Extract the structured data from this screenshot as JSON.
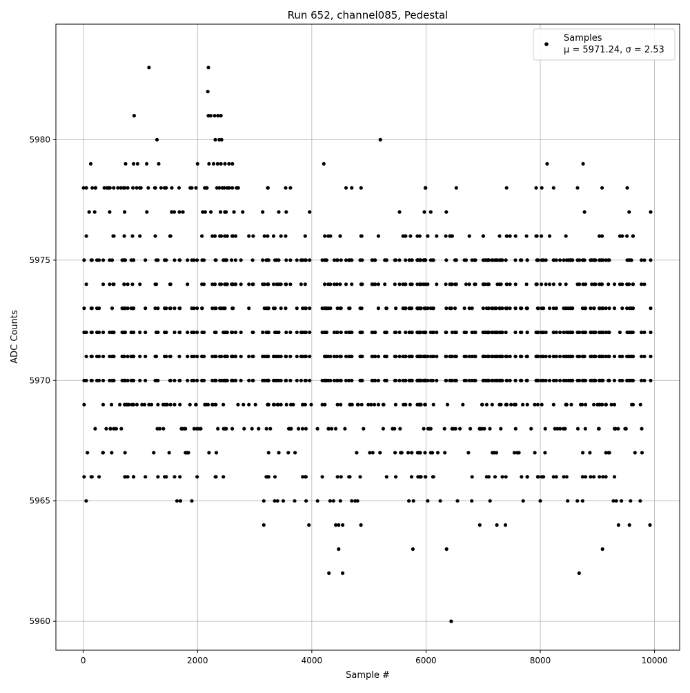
{
  "chart_data": {
    "type": "scatter",
    "title": "Run 652, channel085, Pedestal",
    "xlabel": "Sample #",
    "ylabel": "ADC Counts",
    "xlim": [
      -480,
      10440
    ],
    "ylim": [
      5958.8,
      5984.8
    ],
    "x_ticks": [
      0,
      2000,
      4000,
      6000,
      8000,
      10000
    ],
    "x_tick_labels": [
      "0",
      "2000",
      "4000",
      "6000",
      "8000",
      "10000"
    ],
    "y_ticks": [
      5960,
      5965,
      5970,
      5975,
      5980
    ],
    "y_tick_labels": [
      "5960",
      "5965",
      "5970",
      "5975",
      "5980"
    ],
    "grid": true,
    "marker_color": "#000000",
    "legend": {
      "position": "top-right",
      "entries": [
        {
          "label": "Samples",
          "stats": "μ = 5971.24, σ = 2.53"
        }
      ]
    },
    "series": [
      {
        "name": "Samples",
        "n_samples": 10000,
        "mean": 5971.24,
        "sigma": 2.53,
        "x_range": [
          0,
          9940
        ],
        "dense_levels": [
          5967,
          5968,
          5969,
          5970,
          5971,
          5972,
          5973,
          5974,
          5975,
          5976
        ],
        "sparse_levels": [
          5966,
          5977,
          5978,
          5979,
          5965
        ],
        "points": [
          [
            50,
            5965
          ],
          [
            1900,
            5965
          ],
          [
            1640,
            5965
          ],
          [
            1700,
            5965
          ],
          [
            3160,
            5965
          ],
          [
            3350,
            5965
          ],
          [
            3400,
            5965
          ],
          [
            3500,
            5965
          ],
          [
            3700,
            5965
          ],
          [
            3900,
            5965
          ],
          [
            4100,
            5965
          ],
          [
            4320,
            5965
          ],
          [
            4380,
            5965
          ],
          [
            4500,
            5965
          ],
          [
            4700,
            5965
          ],
          [
            4760,
            5965
          ],
          [
            4800,
            5965
          ],
          [
            5700,
            5965
          ],
          [
            5780,
            5965
          ],
          [
            6030,
            5965
          ],
          [
            6250,
            5965
          ],
          [
            6550,
            5965
          ],
          [
            6800,
            5965
          ],
          [
            7120,
            5965
          ],
          [
            7700,
            5965
          ],
          [
            8000,
            5965
          ],
          [
            8480,
            5965
          ],
          [
            8650,
            5965
          ],
          [
            8740,
            5965
          ],
          [
            9280,
            5965
          ],
          [
            9330,
            5965
          ],
          [
            9420,
            5965
          ],
          [
            9580,
            5965
          ],
          [
            9750,
            5965
          ],
          [
            3160,
            5964
          ],
          [
            3950,
            5964
          ],
          [
            4420,
            5964
          ],
          [
            4470,
            5964
          ],
          [
            4540,
            5964
          ],
          [
            4860,
            5964
          ],
          [
            6940,
            5964
          ],
          [
            7240,
            5964
          ],
          [
            7390,
            5964
          ],
          [
            9370,
            5964
          ],
          [
            9560,
            5964
          ],
          [
            9920,
            5964
          ],
          [
            4470,
            5963
          ],
          [
            5770,
            5963
          ],
          [
            6360,
            5963
          ],
          [
            9090,
            5963
          ],
          [
            4300,
            5962
          ],
          [
            4540,
            5962
          ],
          [
            8680,
            5962
          ],
          [
            6440,
            5960
          ],
          [
            130,
            5979
          ],
          [
            740,
            5979
          ],
          [
            880,
            5979
          ],
          [
            950,
            5979
          ],
          [
            1110,
            5979
          ],
          [
            1320,
            5979
          ],
          [
            2000,
            5979
          ],
          [
            2200,
            5979
          ],
          [
            2280,
            5979
          ],
          [
            2350,
            5979
          ],
          [
            2410,
            5979
          ],
          [
            2480,
            5979
          ],
          [
            2550,
            5979
          ],
          [
            2610,
            5979
          ],
          [
            4210,
            5979
          ],
          [
            8120,
            5979
          ],
          [
            8750,
            5979
          ],
          [
            1290,
            5980
          ],
          [
            2310,
            5980
          ],
          [
            2380,
            5980
          ],
          [
            2420,
            5980
          ],
          [
            5200,
            5980
          ],
          [
            890,
            5981
          ],
          [
            2190,
            5981
          ],
          [
            2230,
            5981
          ],
          [
            2300,
            5981
          ],
          [
            2360,
            5981
          ],
          [
            2410,
            5981
          ],
          [
            2180,
            5982
          ],
          [
            1150,
            5983
          ],
          [
            2190,
            5983
          ]
        ]
      }
    ]
  }
}
